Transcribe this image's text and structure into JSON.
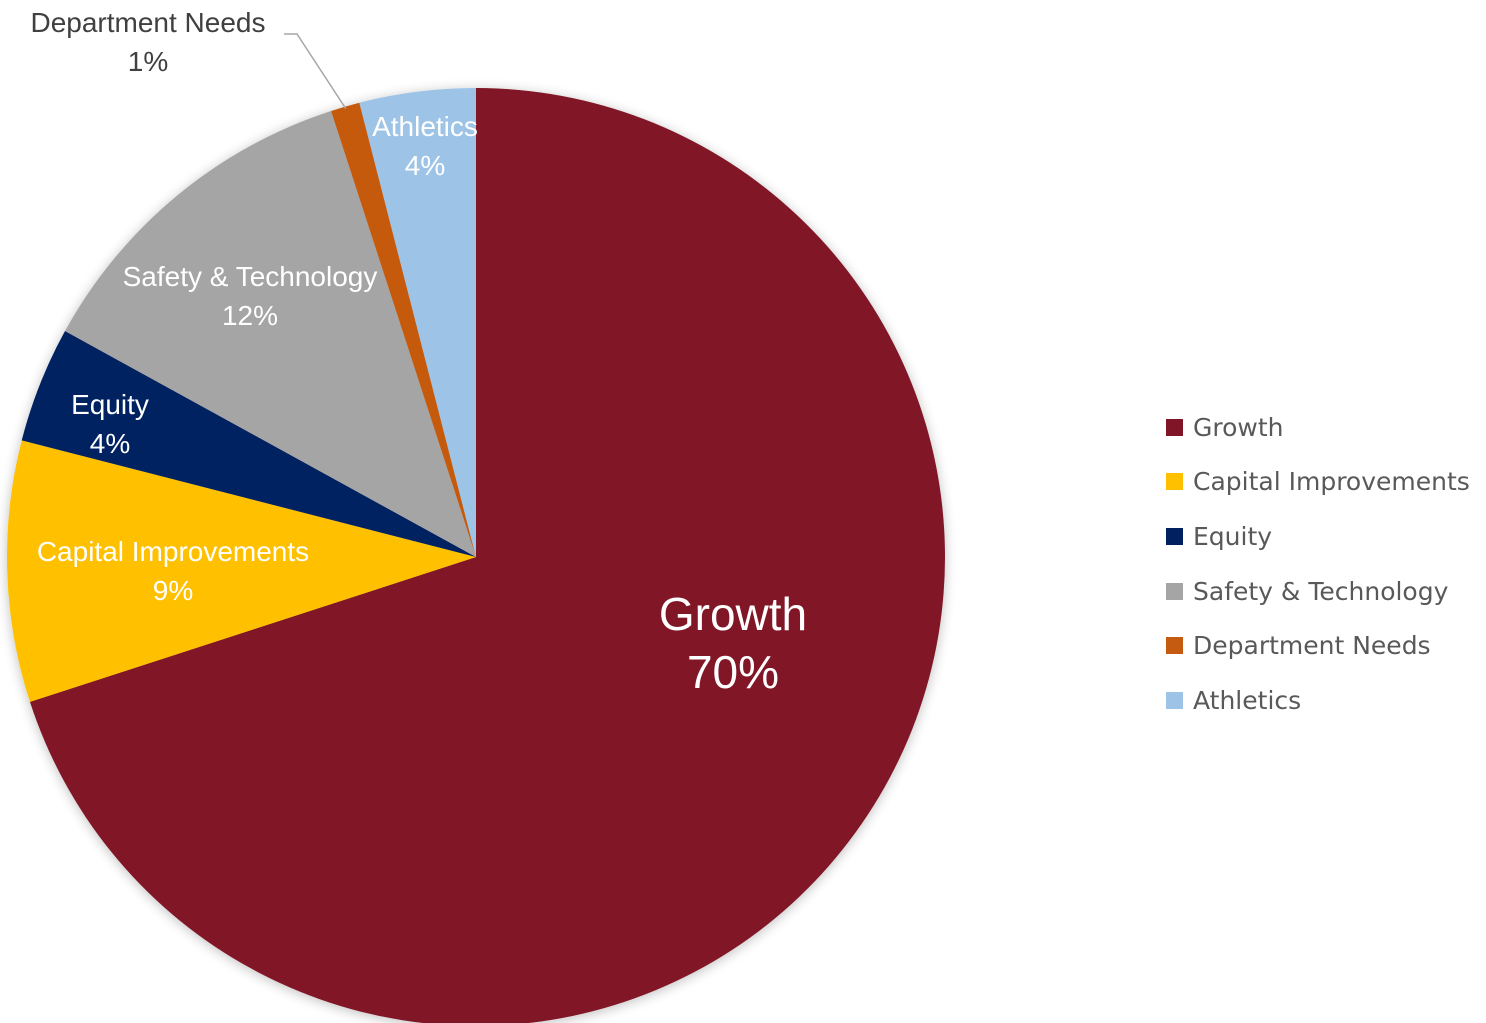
{
  "chart_data": {
    "type": "pie",
    "title": "",
    "unit": "%",
    "start": "12 o'clock, clockwise",
    "legend_position": "right",
    "slices": [
      {
        "label": "Growth",
        "value": 70,
        "value_label": "70%",
        "color": "#801527"
      },
      {
        "label": "Capital Improvements",
        "value": 9,
        "value_label": "9%",
        "color": "#FFC000"
      },
      {
        "label": "Equity",
        "value": 4,
        "value_label": "4%",
        "color": "#002060"
      },
      {
        "label": "Safety & Technology",
        "value": 12,
        "value_label": "12%",
        "color": "#A5A5A5"
      },
      {
        "label": "Department Needs",
        "value": 1,
        "value_label": "1%",
        "color": "#C55A11"
      },
      {
        "label": "Athletics",
        "value": 4,
        "value_label": "4%",
        "color": "#9DC3E6"
      }
    ]
  }
}
